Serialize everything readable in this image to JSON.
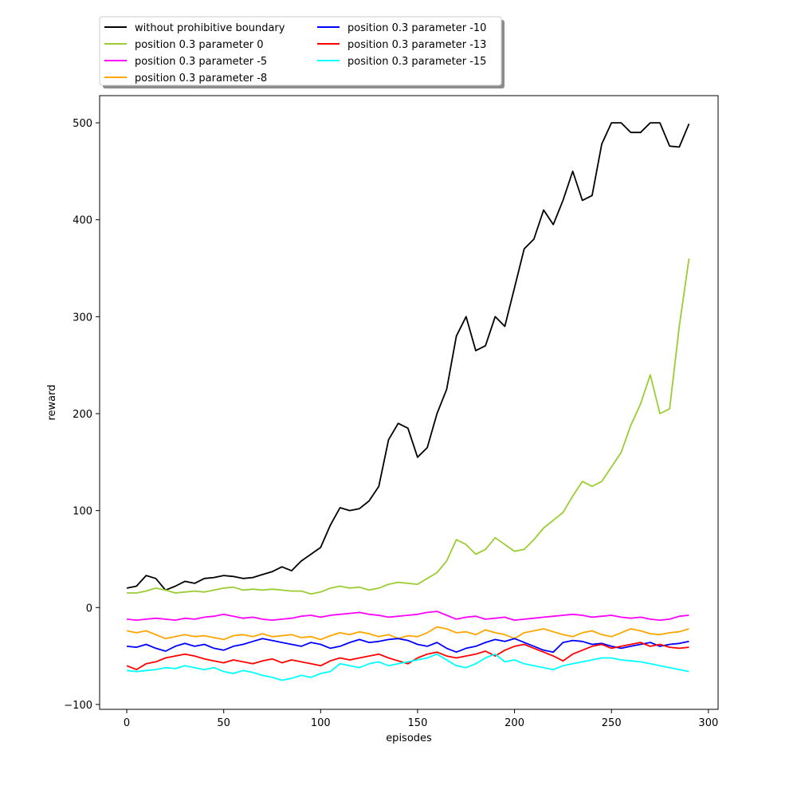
{
  "chart_data": {
    "type": "line",
    "title": "",
    "xlabel": "episodes",
    "ylabel": "reward",
    "xlim": [
      -14,
      305
    ],
    "ylim": [
      -105,
      528
    ],
    "xticks": [
      0,
      50,
      100,
      150,
      200,
      250,
      300
    ],
    "yticks": [
      -100,
      0,
      100,
      200,
      300,
      400,
      500
    ],
    "legend_position": "top-left (outside, above plot)",
    "series": [
      {
        "name": "without prohibitive boundary",
        "color": "#000000",
        "x": [
          0,
          5,
          10,
          15,
          20,
          25,
          30,
          35,
          40,
          45,
          50,
          55,
          60,
          65,
          70,
          75,
          80,
          85,
          90,
          95,
          100,
          105,
          110,
          115,
          120,
          125,
          130,
          135,
          140,
          145,
          150,
          155,
          160,
          165,
          170,
          175,
          180,
          185,
          190,
          195,
          200,
          205,
          210,
          215,
          220,
          225,
          230,
          235,
          240,
          245,
          250,
          255,
          260,
          265,
          270,
          275,
          280,
          285,
          290
        ],
        "values": [
          20,
          22,
          33,
          30,
          18,
          22,
          27,
          25,
          30,
          31,
          33,
          32,
          30,
          31,
          34,
          37,
          42,
          38,
          48,
          55,
          62,
          85,
          103,
          100,
          102,
          110,
          125,
          173,
          190,
          185,
          155,
          165,
          200,
          225,
          280,
          300,
          265,
          270,
          300,
          290,
          330,
          370,
          380,
          410,
          395,
          420,
          450,
          420,
          425,
          478,
          500,
          500,
          490,
          490,
          500,
          500,
          476,
          475,
          499
        ]
      },
      {
        "name": "position 0.3 parameter 0",
        "color": "#9acd32",
        "x": [
          0,
          5,
          10,
          15,
          20,
          25,
          30,
          35,
          40,
          45,
          50,
          55,
          60,
          65,
          70,
          75,
          80,
          85,
          90,
          95,
          100,
          105,
          110,
          115,
          120,
          125,
          130,
          135,
          140,
          145,
          150,
          155,
          160,
          165,
          170,
          175,
          180,
          185,
          190,
          195,
          200,
          205,
          210,
          215,
          220,
          225,
          230,
          235,
          240,
          245,
          250,
          255,
          260,
          265,
          270,
          275,
          280,
          285,
          290
        ],
        "values": [
          15,
          15,
          17,
          20,
          18,
          15,
          16,
          17,
          16,
          18,
          20,
          21,
          18,
          19,
          18,
          19,
          18,
          17,
          17,
          14,
          16,
          20,
          22,
          20,
          21,
          18,
          20,
          24,
          26,
          25,
          24,
          30,
          36,
          48,
          70,
          65,
          55,
          60,
          72,
          65,
          58,
          60,
          70,
          82,
          90,
          98,
          115,
          130,
          125,
          130,
          145,
          160,
          188,
          210,
          240,
          200,
          205,
          290,
          360
        ]
      },
      {
        "name": "position 0.3 parameter -5",
        "color": "#ff00ff",
        "x": [
          0,
          5,
          10,
          15,
          20,
          25,
          30,
          35,
          40,
          45,
          50,
          55,
          60,
          65,
          70,
          75,
          80,
          85,
          90,
          95,
          100,
          105,
          110,
          115,
          120,
          125,
          130,
          135,
          140,
          145,
          150,
          155,
          160,
          165,
          170,
          175,
          180,
          185,
          190,
          195,
          200,
          205,
          210,
          215,
          220,
          225,
          230,
          235,
          240,
          245,
          250,
          255,
          260,
          265,
          270,
          275,
          280,
          285,
          290
        ],
        "values": [
          -12,
          -13,
          -12,
          -11,
          -12,
          -13,
          -11,
          -12,
          -10,
          -9,
          -7,
          -9,
          -11,
          -10,
          -12,
          -13,
          -12,
          -11,
          -9,
          -8,
          -10,
          -8,
          -7,
          -6,
          -5,
          -7,
          -8,
          -10,
          -9,
          -8,
          -7,
          -5,
          -4,
          -8,
          -12,
          -10,
          -9,
          -12,
          -11,
          -10,
          -13,
          -12,
          -11,
          -10,
          -9,
          -8,
          -7,
          -8,
          -10,
          -9,
          -8,
          -10,
          -11,
          -10,
          -12,
          -13,
          -12,
          -9,
          -8
        ]
      },
      {
        "name": "position 0.3 parameter -8",
        "color": "#ffa500",
        "x": [
          0,
          5,
          10,
          15,
          20,
          25,
          30,
          35,
          40,
          45,
          50,
          55,
          60,
          65,
          70,
          75,
          80,
          85,
          90,
          95,
          100,
          105,
          110,
          115,
          120,
          125,
          130,
          135,
          140,
          145,
          150,
          155,
          160,
          165,
          170,
          175,
          180,
          185,
          190,
          195,
          200,
          205,
          210,
          215,
          220,
          225,
          230,
          235,
          240,
          245,
          250,
          255,
          260,
          265,
          270,
          275,
          280,
          285,
          290
        ],
        "values": [
          -24,
          -26,
          -24,
          -28,
          -32,
          -30,
          -28,
          -30,
          -29,
          -31,
          -33,
          -29,
          -28,
          -30,
          -27,
          -30,
          -29,
          -28,
          -31,
          -30,
          -33,
          -29,
          -26,
          -28,
          -25,
          -27,
          -30,
          -28,
          -32,
          -29,
          -30,
          -26,
          -20,
          -22,
          -26,
          -25,
          -28,
          -23,
          -26,
          -28,
          -32,
          -26,
          -24,
          -22,
          -25,
          -28,
          -30,
          -26,
          -24,
          -28,
          -30,
          -26,
          -22,
          -24,
          -27,
          -28,
          -26,
          -25,
          -22
        ]
      },
      {
        "name": "position 0.3 parameter -10",
        "color": "#0000ff",
        "x": [
          0,
          5,
          10,
          15,
          20,
          25,
          30,
          35,
          40,
          45,
          50,
          55,
          60,
          65,
          70,
          75,
          80,
          85,
          90,
          95,
          100,
          105,
          110,
          115,
          120,
          125,
          130,
          135,
          140,
          145,
          150,
          155,
          160,
          165,
          170,
          175,
          180,
          185,
          190,
          195,
          200,
          205,
          210,
          215,
          220,
          225,
          230,
          235,
          240,
          245,
          250,
          255,
          260,
          265,
          270,
          275,
          280,
          285,
          290
        ],
        "values": [
          -40,
          -41,
          -38,
          -42,
          -45,
          -40,
          -37,
          -40,
          -38,
          -42,
          -44,
          -40,
          -38,
          -35,
          -32,
          -34,
          -36,
          -38,
          -40,
          -36,
          -38,
          -42,
          -40,
          -36,
          -33,
          -36,
          -35,
          -33,
          -32,
          -34,
          -38,
          -40,
          -36,
          -42,
          -46,
          -42,
          -40,
          -36,
          -33,
          -35,
          -32,
          -36,
          -40,
          -44,
          -46,
          -36,
          -34,
          -35,
          -38,
          -37,
          -40,
          -42,
          -40,
          -38,
          -36,
          -40,
          -38,
          -37,
          -35
        ]
      },
      {
        "name": "position 0.3 parameter -13",
        "color": "#ff0000",
        "x": [
          0,
          5,
          10,
          15,
          20,
          25,
          30,
          35,
          40,
          45,
          50,
          55,
          60,
          65,
          70,
          75,
          80,
          85,
          90,
          95,
          100,
          105,
          110,
          115,
          120,
          125,
          130,
          135,
          140,
          145,
          150,
          155,
          160,
          165,
          170,
          175,
          180,
          185,
          190,
          195,
          200,
          205,
          210,
          215,
          220,
          225,
          230,
          235,
          240,
          245,
          250,
          255,
          260,
          265,
          270,
          275,
          280,
          285,
          290
        ],
        "values": [
          -60,
          -64,
          -58,
          -56,
          -52,
          -50,
          -48,
          -50,
          -53,
          -55,
          -57,
          -54,
          -56,
          -58,
          -55,
          -53,
          -57,
          -54,
          -56,
          -58,
          -60,
          -55,
          -52,
          -54,
          -52,
          -50,
          -48,
          -52,
          -55,
          -58,
          -52,
          -48,
          -46,
          -50,
          -52,
          -50,
          -48,
          -45,
          -50,
          -44,
          -40,
          -38,
          -42,
          -46,
          -50,
          -55,
          -48,
          -44,
          -40,
          -38,
          -42,
          -40,
          -38,
          -36,
          -40,
          -38,
          -41,
          -42,
          -41
        ]
      },
      {
        "name": "position 0.3 parameter -15",
        "color": "#00ffff",
        "x": [
          0,
          5,
          10,
          15,
          20,
          25,
          30,
          35,
          40,
          45,
          50,
          55,
          60,
          65,
          70,
          75,
          80,
          85,
          90,
          95,
          100,
          105,
          110,
          115,
          120,
          125,
          130,
          135,
          140,
          145,
          150,
          155,
          160,
          165,
          170,
          175,
          180,
          185,
          190,
          195,
          200,
          205,
          210,
          215,
          220,
          225,
          230,
          235,
          240,
          245,
          250,
          255,
          260,
          265,
          270,
          275,
          280,
          285,
          290
        ],
        "values": [
          -65,
          -66,
          -65,
          -64,
          -62,
          -63,
          -60,
          -62,
          -64,
          -62,
          -66,
          -68,
          -65,
          -67,
          -70,
          -72,
          -75,
          -73,
          -70,
          -72,
          -68,
          -66,
          -58,
          -60,
          -62,
          -58,
          -56,
          -60,
          -58,
          -56,
          -54,
          -52,
          -48,
          -54,
          -60,
          -62,
          -58,
          -52,
          -48,
          -56,
          -54,
          -58,
          -60,
          -62,
          -64,
          -60,
          -58,
          -56,
          -54,
          -52,
          -52,
          -54,
          -55,
          -56,
          -58,
          -60,
          -62,
          -64,
          -66
        ]
      }
    ]
  }
}
